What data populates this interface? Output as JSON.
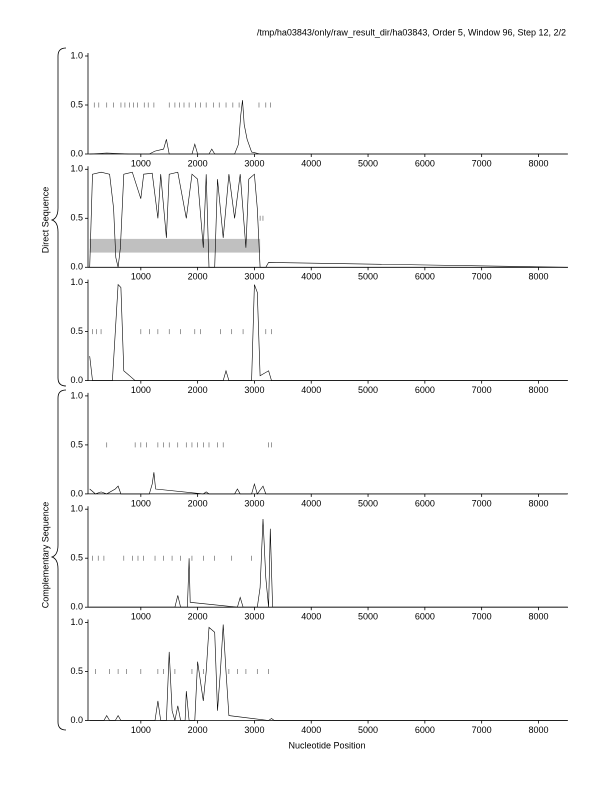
{
  "header": "/tmp/ha03843/only/raw_result_dir/ha03843, Order 5, Window 96, Step 12, 2/2",
  "xlabel": "Nucleotide Position",
  "groups": [
    "Direct Sequence",
    "Complementary Sequence"
  ],
  "chart_data": [
    {
      "type": "line",
      "color": "#000000",
      "xlim": [
        70,
        8520
      ],
      "ylim": [
        0,
        1
      ],
      "xticks": [
        1000,
        2000,
        3000,
        4000,
        5000,
        6000,
        7000,
        8000
      ],
      "yticks": [
        {
          "value": 0,
          "label": "0.0"
        },
        {
          "value": 0.5,
          "label": "0.5"
        },
        {
          "value": 1,
          "label": "1.0"
        }
      ],
      "x": [
        100,
        400,
        800,
        1150,
        1250,
        1400,
        1450,
        1500,
        1900,
        1950,
        2000,
        2200,
        2250,
        2300,
        2650,
        2720,
        2760,
        2790,
        2820,
        2870,
        2950,
        3100,
        3300,
        8500
      ],
      "values": [
        0,
        0.01,
        0,
        0,
        0.03,
        0.05,
        0.15,
        0,
        0,
        0.1,
        0,
        0,
        0.05,
        0,
        0,
        0.1,
        0.4,
        0.55,
        0.3,
        0.15,
        0.02,
        0,
        0,
        0
      ],
      "marker_y": 0.5,
      "markers": [
        180,
        260,
        400,
        520,
        650,
        720,
        800,
        870,
        940,
        1060,
        1130,
        1230,
        1500,
        1600,
        1680,
        1760,
        1850,
        1960,
        2050,
        2150,
        2280,
        2380,
        2500,
        2620,
        2730,
        3080,
        3200,
        3280
      ]
    },
    {
      "type": "line",
      "color": "#000000",
      "xlim": [
        70,
        8520
      ],
      "ylim": [
        0,
        1
      ],
      "xticks": [
        1000,
        2000,
        3000,
        4000,
        5000,
        6000,
        7000,
        8000
      ],
      "yticks": [
        {
          "value": 0,
          "label": "0.0"
        },
        {
          "value": 0.5,
          "label": "0.5"
        },
        {
          "value": 1,
          "label": "1.0"
        }
      ],
      "highlight": {
        "x": [
          100,
          3100
        ],
        "y": [
          0.15,
          0.29
        ]
      },
      "x": [
        100,
        150,
        300,
        450,
        520,
        560,
        600,
        640,
        700,
        850,
        1000,
        1050,
        1200,
        1300,
        1350,
        1450,
        1500,
        1650,
        1800,
        1900,
        2000,
        2100,
        2150,
        2200,
        2300,
        2350,
        2450,
        2550,
        2650,
        2750,
        2850,
        2900,
        3000,
        3050,
        3100,
        3200,
        3250,
        8500
      ],
      "values": [
        0,
        0.95,
        0.97,
        0.95,
        0.6,
        0.1,
        0,
        0.2,
        0.95,
        0.97,
        0.7,
        0.95,
        0.96,
        0.5,
        0.95,
        0.3,
        0.95,
        0.97,
        0.5,
        0.95,
        0.9,
        0.2,
        0.95,
        0,
        0,
        0.9,
        0.3,
        0.95,
        0.5,
        0.95,
        0.2,
        0.9,
        0.95,
        0.6,
        0,
        0,
        0.05,
        0
      ],
      "marker_y": 0.5,
      "markers": [
        3100,
        3150
      ]
    },
    {
      "type": "line",
      "color": "#000000",
      "xlim": [
        70,
        8520
      ],
      "ylim": [
        0,
        1
      ],
      "xticks": [
        1000,
        2000,
        3000,
        4000,
        5000,
        6000,
        7000,
        8000
      ],
      "yticks": [
        {
          "value": 0,
          "label": "0.0"
        },
        {
          "value": 0.5,
          "label": "0.5"
        },
        {
          "value": 1,
          "label": "1.0"
        }
      ],
      "x": [
        100,
        150,
        500,
        600,
        650,
        700,
        800,
        900,
        2450,
        2500,
        2550,
        2950,
        3000,
        3050,
        3100,
        3250,
        3300,
        8500
      ],
      "values": [
        0.25,
        0,
        0,
        0.98,
        0.95,
        0.1,
        0.05,
        0,
        0,
        0.1,
        0,
        0,
        0.98,
        0.9,
        0.05,
        0.1,
        0,
        0
      ],
      "marker_y": 0.5,
      "markers": [
        150,
        220,
        300,
        1000,
        1150,
        1300,
        1500,
        1700,
        1950,
        2050,
        2400,
        2600,
        2800,
        3200,
        3300
      ]
    },
    {
      "type": "line",
      "color": "#000000",
      "xlim": [
        70,
        8520
      ],
      "ylim": [
        0,
        1
      ],
      "xticks": [
        1000,
        2000,
        3000,
        4000,
        5000,
        6000,
        7000,
        8000
      ],
      "yticks": [
        {
          "value": 0,
          "label": "0.0"
        },
        {
          "value": 0.5,
          "label": "0.5"
        },
        {
          "value": 1,
          "label": "1.0"
        }
      ],
      "x": [
        100,
        200,
        300,
        400,
        550,
        600,
        650,
        1150,
        1200,
        1230,
        1260,
        2100,
        2150,
        2200,
        2650,
        2700,
        2750,
        2950,
        3000,
        3050,
        3150,
        3200,
        8500
      ],
      "values": [
        0.05,
        0,
        0.02,
        0,
        0.05,
        0.08,
        0,
        0,
        0.1,
        0.22,
        0.05,
        0,
        0.02,
        0,
        0,
        0.05,
        0,
        0,
        0.1,
        0,
        0.08,
        0,
        0
      ],
      "marker_y": 0.5,
      "markers": [
        400,
        900,
        1000,
        1100,
        1300,
        1400,
        1500,
        1650,
        1800,
        1900,
        2000,
        2100,
        2200,
        2350,
        2450,
        3250,
        3300
      ]
    },
    {
      "type": "line",
      "color": "#000000",
      "xlim": [
        70,
        8520
      ],
      "ylim": [
        0,
        1
      ],
      "xticks": [
        1000,
        2000,
        3000,
        4000,
        5000,
        6000,
        7000,
        8000
      ],
      "yticks": [
        {
          "value": 0,
          "label": "0.0"
        },
        {
          "value": 0.5,
          "label": "0.5"
        },
        {
          "value": 1,
          "label": "1.0"
        }
      ],
      "x": [
        100,
        1600,
        1650,
        1700,
        1820,
        1850,
        1870,
        2700,
        2750,
        2800,
        3050,
        3100,
        3150,
        3200,
        3250,
        3280,
        3320,
        8500
      ],
      "values": [
        0,
        0,
        0.12,
        0,
        0,
        0.5,
        0.05,
        0,
        0.1,
        0,
        0,
        0.2,
        0.9,
        0.3,
        0,
        0.8,
        0,
        0
      ],
      "marker_y": 0.5,
      "markers": [
        150,
        250,
        350,
        700,
        850,
        950,
        1050,
        1250,
        1400,
        1550,
        1700,
        1900,
        2100,
        2300,
        2600,
        2950
      ]
    },
    {
      "type": "line",
      "color": "#000000",
      "xlim": [
        70,
        8520
      ],
      "ylim": [
        0,
        1
      ],
      "xticks": [
        1000,
        2000,
        3000,
        4000,
        5000,
        6000,
        7000,
        8000
      ],
      "yticks": [
        {
          "value": 0,
          "label": "0.0"
        },
        {
          "value": 0.5,
          "label": "0.5"
        },
        {
          "value": 1,
          "label": "1.0"
        }
      ],
      "x": [
        100,
        350,
        400,
        450,
        550,
        600,
        650,
        1250,
        1300,
        1350,
        1450,
        1500,
        1550,
        1600,
        1650,
        1700,
        1780,
        1800,
        1850,
        1950,
        2000,
        2100,
        2150,
        2200,
        2300,
        2350,
        2400,
        2450,
        2500,
        2550,
        3250,
        3300,
        3350,
        8500
      ],
      "values": [
        0,
        0,
        0.05,
        0,
        0,
        0.05,
        0,
        0,
        0.2,
        0,
        0,
        0.7,
        0.1,
        0,
        0.15,
        0,
        0,
        0.3,
        0,
        0,
        0.6,
        0.2,
        0.5,
        0.95,
        0.9,
        0.1,
        0.5,
        0.98,
        0.5,
        0.05,
        0,
        0.02,
        0,
        0
      ],
      "marker_y": 0.5,
      "markers": [
        200,
        450,
        600,
        750,
        1000,
        1300,
        1400,
        1600,
        1900,
        2100,
        2550,
        2700,
        2850,
        3050,
        3250
      ]
    }
  ]
}
